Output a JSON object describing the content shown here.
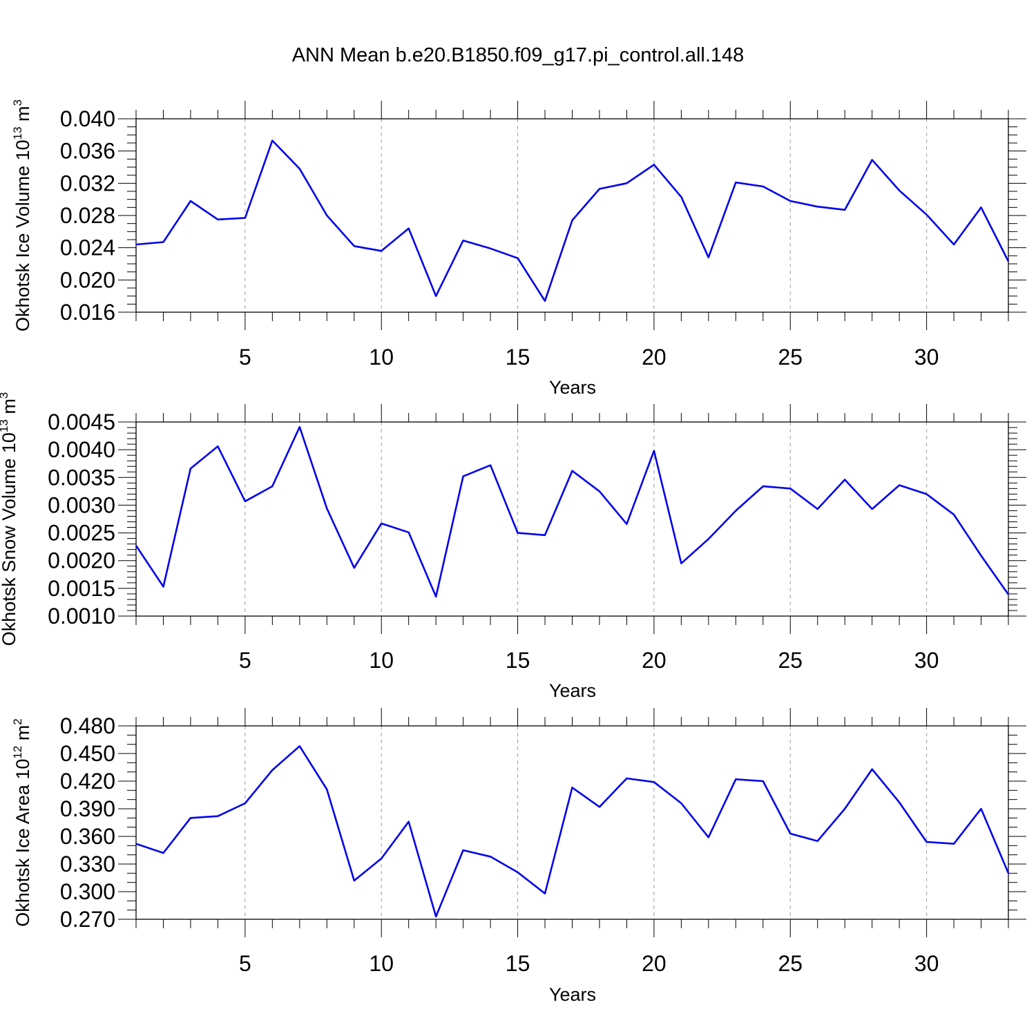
{
  "figure": {
    "title": "ANN Mean b.e20.B1850.f09_g17.pi_control.all.148",
    "line_color": "#0000ee",
    "grid_color": "#999999"
  },
  "chart_data": [
    {
      "type": "line",
      "title": "ANN Mean b.e20.B1850.f09_g17.pi_control.all.148",
      "xlabel": "Years",
      "ylabel": {
        "main": "Okhotsk Ice Volume 10",
        "exp": "13",
        "unit": " m",
        "unit_exp": "3"
      },
      "xlim": [
        1,
        33
      ],
      "ylim": [
        0.016,
        0.04
      ],
      "yticks": [
        0.016,
        0.02,
        0.024,
        0.028,
        0.032,
        0.036,
        0.04
      ],
      "ytick_labels": [
        "0.016",
        "0.020",
        "0.024",
        "0.028",
        "0.032",
        "0.036",
        "0.040"
      ],
      "yminor_step": 0.001,
      "xticks": [
        5,
        10,
        15,
        20,
        25,
        30
      ],
      "xtick_labels": [
        "5",
        "10",
        "15",
        "20",
        "25",
        "30"
      ],
      "grid": "vertical dashed at major x ticks",
      "series": [
        {
          "name": "Okhotsk Ice Volume",
          "x": [
            1,
            2,
            3,
            4,
            5,
            6,
            7,
            8,
            9,
            10,
            11,
            12,
            13,
            14,
            15,
            16,
            17,
            18,
            19,
            20,
            21,
            22,
            23,
            24,
            25,
            26,
            27,
            28,
            29,
            30,
            31,
            32,
            33
          ],
          "values": [
            0.0244,
            0.0247,
            0.0298,
            0.0275,
            0.0277,
            0.0373,
            0.0338,
            0.028,
            0.0242,
            0.0236,
            0.0264,
            0.018,
            0.0249,
            0.0239,
            0.0227,
            0.0174,
            0.0274,
            0.0313,
            0.032,
            0.0343,
            0.0303,
            0.0228,
            0.0321,
            0.0316,
            0.0298,
            0.0291,
            0.0287,
            0.0349,
            0.0311,
            0.0281,
            0.0244,
            0.029,
            0.0223
          ]
        }
      ]
    },
    {
      "type": "line",
      "xlabel": "Years",
      "ylabel": {
        "main": "Okhotsk Snow Volume 10",
        "exp": "13",
        "unit": " m",
        "unit_exp": "3"
      },
      "xlim": [
        1,
        33
      ],
      "ylim": [
        0.001,
        0.0045
      ],
      "yticks": [
        0.001,
        0.0015,
        0.002,
        0.0025,
        0.003,
        0.0035,
        0.004,
        0.0045
      ],
      "ytick_labels": [
        "0.0010",
        "0.0015",
        "0.0020",
        "0.0025",
        "0.0030",
        "0.0035",
        "0.0040",
        "0.0045"
      ],
      "yminor_step": 0.0001,
      "xticks": [
        5,
        10,
        15,
        20,
        25,
        30
      ],
      "xtick_labels": [
        "5",
        "10",
        "15",
        "20",
        "25",
        "30"
      ],
      "grid": "vertical dashed at major x ticks",
      "series": [
        {
          "name": "Okhotsk Snow Volume",
          "x": [
            1,
            2,
            3,
            4,
            5,
            6,
            7,
            8,
            9,
            10,
            11,
            12,
            13,
            14,
            15,
            16,
            17,
            18,
            19,
            20,
            21,
            22,
            23,
            24,
            25,
            26,
            27,
            28,
            29,
            30,
            31,
            32,
            33
          ],
          "values": [
            0.00227,
            0.00153,
            0.00366,
            0.00406,
            0.00307,
            0.00334,
            0.00441,
            0.00294,
            0.00187,
            0.00267,
            0.00251,
            0.00135,
            0.00352,
            0.00372,
            0.0025,
            0.00246,
            0.00362,
            0.00325,
            0.00266,
            0.00398,
            0.00195,
            0.00239,
            0.0029,
            0.00334,
            0.0033,
            0.00293,
            0.00346,
            0.00293,
            0.00336,
            0.0032,
            0.00283,
            0.00209,
            0.00139
          ]
        }
      ]
    },
    {
      "type": "line",
      "xlabel": "Years",
      "ylabel": {
        "main": "Okhotsk Ice Area 10",
        "exp": "12",
        "unit": " m",
        "unit_exp": "2"
      },
      "xlim": [
        1,
        33
      ],
      "ylim": [
        0.27,
        0.48
      ],
      "yticks": [
        0.27,
        0.3,
        0.33,
        0.36,
        0.39,
        0.42,
        0.45,
        0.48
      ],
      "ytick_labels": [
        "0.270",
        "0.300",
        "0.330",
        "0.360",
        "0.390",
        "0.420",
        "0.450",
        "0.480"
      ],
      "yminor_step": 0.01,
      "xticks": [
        5,
        10,
        15,
        20,
        25,
        30
      ],
      "xtick_labels": [
        "5",
        "10",
        "15",
        "20",
        "25",
        "30"
      ],
      "grid": "vertical dashed at major x ticks",
      "series": [
        {
          "name": "Okhotsk Ice Area",
          "x": [
            1,
            2,
            3,
            4,
            5,
            6,
            7,
            8,
            9,
            10,
            11,
            12,
            13,
            14,
            15,
            16,
            17,
            18,
            19,
            20,
            21,
            22,
            23,
            24,
            25,
            26,
            27,
            28,
            29,
            30,
            31,
            32,
            33
          ],
          "values": [
            0.352,
            0.342,
            0.38,
            0.382,
            0.396,
            0.432,
            0.458,
            0.411,
            0.312,
            0.336,
            0.376,
            0.273,
            0.345,
            0.338,
            0.321,
            0.298,
            0.413,
            0.392,
            0.423,
            0.419,
            0.396,
            0.359,
            0.422,
            0.42,
            0.363,
            0.355,
            0.39,
            0.433,
            0.397,
            0.354,
            0.352,
            0.39,
            0.32
          ]
        }
      ]
    }
  ]
}
